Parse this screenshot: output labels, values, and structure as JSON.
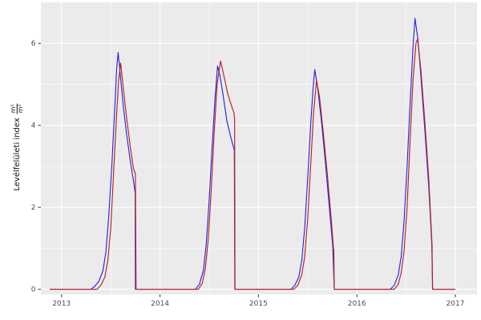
{
  "chart_data": {
    "type": "line",
    "title": "",
    "xlabel": "",
    "ylabel_text": "Levélfelületi index",
    "ylabel_fraction": {
      "numerator": "m²",
      "denominator": "m²"
    },
    "x_ticks": [
      "2013",
      "2014",
      "2015",
      "2016",
      "2017"
    ],
    "x_tick_values": [
      2013,
      2014,
      2015,
      2016,
      2017
    ],
    "y_ticks": [
      "0",
      "2",
      "4",
      "6"
    ],
    "y_tick_values": [
      0,
      2,
      4,
      6
    ],
    "x_minor_values": [
      2013.5,
      2014.5,
      2015.5,
      2016.5
    ],
    "y_minor_values": [
      1,
      3,
      5
    ],
    "xlim": [
      2012.79,
      2017.22
    ],
    "ylim": [
      -0.125,
      7.0
    ],
    "grid": true,
    "legend": "none",
    "panel_bg": "#EBEBEB",
    "grid_major_color": "#FFFFFF",
    "grid_minor_color": "#FFFFFF",
    "tick_mark_color": "#333333",
    "tick_label_color": "#4D4D4D",
    "axis_title_color": "#111111",
    "series": [
      {
        "name": "series-blue",
        "color": "#2626DF",
        "points": [
          [
            2012.88,
            0
          ],
          [
            2013.3,
            0
          ],
          [
            2013.34,
            0.08
          ],
          [
            2013.38,
            0.2
          ],
          [
            2013.42,
            0.45
          ],
          [
            2013.45,
            0.9
          ],
          [
            2013.48,
            1.8
          ],
          [
            2013.51,
            3.0
          ],
          [
            2013.54,
            4.4
          ],
          [
            2013.56,
            5.4
          ],
          [
            2013.575,
            5.78
          ],
          [
            2013.6,
            5.15
          ],
          [
            2013.63,
            4.4
          ],
          [
            2013.66,
            3.8
          ],
          [
            2013.7,
            3.1
          ],
          [
            2013.73,
            2.65
          ],
          [
            2013.748,
            2.35
          ],
          [
            2013.75,
            0
          ],
          [
            2014.36,
            0
          ],
          [
            2014.4,
            0.12
          ],
          [
            2014.44,
            0.45
          ],
          [
            2014.47,
            1.1
          ],
          [
            2014.5,
            2.2
          ],
          [
            2014.53,
            3.5
          ],
          [
            2014.56,
            4.7
          ],
          [
            2014.585,
            5.45
          ],
          [
            2014.61,
            5.2
          ],
          [
            2014.64,
            4.75
          ],
          [
            2014.68,
            4.1
          ],
          [
            2014.72,
            3.7
          ],
          [
            2014.755,
            3.4
          ],
          [
            2014.76,
            0
          ],
          [
            2015.33,
            0
          ],
          [
            2015.37,
            0.1
          ],
          [
            2015.41,
            0.3
          ],
          [
            2015.44,
            0.7
          ],
          [
            2015.47,
            1.5
          ],
          [
            2015.5,
            2.7
          ],
          [
            2015.53,
            4.0
          ],
          [
            2015.555,
            4.9
          ],
          [
            2015.572,
            5.36
          ],
          [
            2015.6,
            4.95
          ],
          [
            2015.64,
            4.1
          ],
          [
            2015.68,
            3.1
          ],
          [
            2015.72,
            2.0
          ],
          [
            2015.755,
            1.05
          ],
          [
            2015.77,
            0
          ],
          [
            2016.34,
            0
          ],
          [
            2016.38,
            0.1
          ],
          [
            2016.42,
            0.35
          ],
          [
            2016.45,
            0.8
          ],
          [
            2016.48,
            1.7
          ],
          [
            2016.51,
            3.0
          ],
          [
            2016.54,
            4.5
          ],
          [
            2016.57,
            5.9
          ],
          [
            2016.59,
            6.61
          ],
          [
            2016.62,
            6.1
          ],
          [
            2016.65,
            5.2
          ],
          [
            2016.69,
            3.9
          ],
          [
            2016.73,
            2.5
          ],
          [
            2016.76,
            1.15
          ],
          [
            2016.77,
            0
          ],
          [
            2017.0,
            0
          ]
        ]
      },
      {
        "name": "series-red",
        "color": "#B22222",
        "points": [
          [
            2012.88,
            0
          ],
          [
            2013.36,
            0
          ],
          [
            2013.4,
            0.1
          ],
          [
            2013.44,
            0.3
          ],
          [
            2013.47,
            0.7
          ],
          [
            2013.5,
            1.5
          ],
          [
            2013.53,
            2.9
          ],
          [
            2013.56,
            4.3
          ],
          [
            2013.58,
            5.1
          ],
          [
            2013.6,
            5.52
          ],
          [
            2013.63,
            4.85
          ],
          [
            2013.66,
            4.2
          ],
          [
            2013.7,
            3.45
          ],
          [
            2013.73,
            2.95
          ],
          [
            2013.75,
            2.82
          ],
          [
            2013.757,
            0
          ],
          [
            2014.39,
            0
          ],
          [
            2014.43,
            0.15
          ],
          [
            2014.46,
            0.5
          ],
          [
            2014.49,
            1.2
          ],
          [
            2014.52,
            2.4
          ],
          [
            2014.55,
            3.8
          ],
          [
            2014.58,
            5.0
          ],
          [
            2014.615,
            5.57
          ],
          [
            2014.65,
            5.2
          ],
          [
            2014.69,
            4.75
          ],
          [
            2014.73,
            4.45
          ],
          [
            2014.752,
            4.3
          ],
          [
            2014.758,
            4.15
          ],
          [
            2014.762,
            0
          ],
          [
            2015.36,
            0
          ],
          [
            2015.4,
            0.1
          ],
          [
            2015.44,
            0.35
          ],
          [
            2015.47,
            0.8
          ],
          [
            2015.5,
            1.7
          ],
          [
            2015.53,
            3.0
          ],
          [
            2015.56,
            4.3
          ],
          [
            2015.59,
            5.1
          ],
          [
            2015.62,
            4.7
          ],
          [
            2015.66,
            3.8
          ],
          [
            2015.7,
            2.8
          ],
          [
            2015.74,
            1.7
          ],
          [
            2015.762,
            1.0
          ],
          [
            2015.766,
            0.95
          ],
          [
            2015.77,
            0
          ],
          [
            2016.38,
            0
          ],
          [
            2016.42,
            0.12
          ],
          [
            2016.45,
            0.4
          ],
          [
            2016.48,
            0.95
          ],
          [
            2016.51,
            2.0
          ],
          [
            2016.54,
            3.6
          ],
          [
            2016.57,
            5.1
          ],
          [
            2016.6,
            6.0
          ],
          [
            2016.617,
            6.11
          ],
          [
            2016.65,
            5.35
          ],
          [
            2016.69,
            4.1
          ],
          [
            2016.73,
            2.7
          ],
          [
            2016.758,
            1.35
          ],
          [
            2016.764,
            1.05
          ],
          [
            2016.768,
            0
          ],
          [
            2017.0,
            0
          ]
        ]
      }
    ]
  }
}
